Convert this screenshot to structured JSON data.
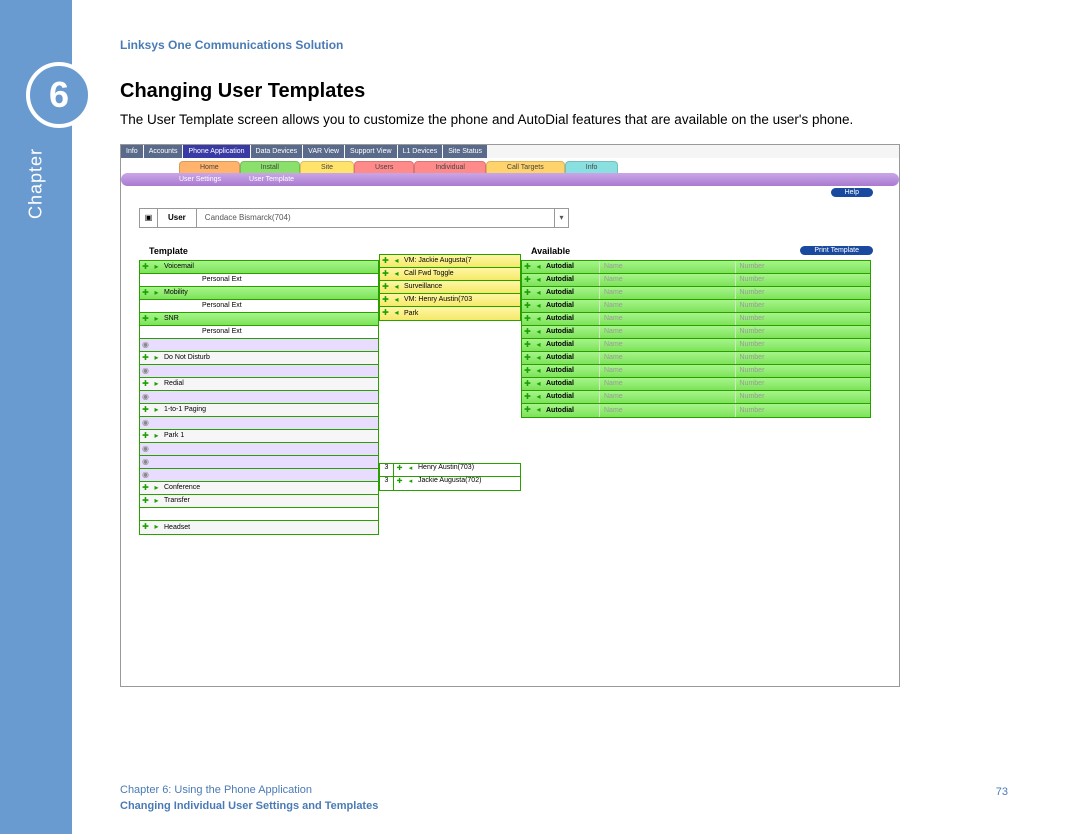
{
  "doc": {
    "productLine": "Linksys One Communications Solution",
    "chapterNumber": "6",
    "chapterWord": "Chapter",
    "sectionTitle": "Changing User Templates",
    "body": "The User Template screen allows you to customize the phone and AutoDial features that are available on the user's phone.",
    "footerLine1": "Chapter 6: Using the Phone Application",
    "footerLine2": "Changing Individual User Settings and Templates",
    "pageNumber": "73"
  },
  "colors": {
    "sidebar": "#6a9bd0",
    "heading": "#4a7bb5",
    "tabHome": "#ffb36b",
    "tabInstall": "#8ae06a",
    "tabSite": "#ffe36b",
    "tabUsers": "#ff8a8a",
    "tabIndividual": "#ff8a8a",
    "tabCallTargets": "#ffd36b",
    "tabInfo": "#8ae0e0",
    "purpleBar": "linear-gradient(#c9a6e8,#a97ad0)",
    "greenRow": "linear-gradient(#a6f58a,#7de35a)"
  },
  "screenshot": {
    "topTabs": [
      "Info",
      "Accounts",
      "Phone Application",
      "Data Devices",
      "VAR View",
      "Support View",
      "L1 Devices",
      "Site Status"
    ],
    "topTabsActiveIndex": 2,
    "navTabs": [
      "Home",
      "Install",
      "Site",
      "Users",
      "Individual",
      "Call Targets",
      "Info"
    ],
    "purpleTabs": [
      "User Settings",
      "User Template"
    ],
    "helpLabel": "Help",
    "printLabel": "Print Template",
    "userLabel": "User",
    "userValue": "Candace Bismarck(704)",
    "templateHeader": "Template",
    "availableHeader": "Available",
    "templateItems": [
      {
        "label": "Voicemail",
        "style": "green",
        "icons": "pa"
      },
      {
        "label": "Personal Ext",
        "style": "plain",
        "icons": "none",
        "indent": true
      },
      {
        "label": "Mobility",
        "style": "green",
        "icons": "pa"
      },
      {
        "label": "Personal Ext",
        "style": "plain",
        "icons": "none",
        "indent": true
      },
      {
        "label": "SNR",
        "style": "green",
        "icons": "pa"
      },
      {
        "label": "Personal Ext",
        "style": "plain",
        "icons": "none",
        "indent": true
      },
      {
        "label": "",
        "style": "lav",
        "icons": "c"
      },
      {
        "label": "Do Not Disturb",
        "style": "gray",
        "icons": "pa"
      },
      {
        "label": "",
        "style": "lav",
        "icons": "c"
      },
      {
        "label": "Redial",
        "style": "gray",
        "icons": "pa"
      },
      {
        "label": "",
        "style": "lav",
        "icons": "c"
      },
      {
        "label": "1-to-1 Paging",
        "style": "gray",
        "icons": "pa"
      },
      {
        "label": "",
        "style": "lav",
        "icons": "c"
      },
      {
        "label": "Park 1",
        "style": "gray",
        "icons": "pa"
      },
      {
        "label": "",
        "style": "lav",
        "icons": "c"
      },
      {
        "label": "",
        "style": "lav",
        "icons": "c"
      },
      {
        "label": "",
        "style": "lav",
        "icons": "c"
      },
      {
        "label": "Conference",
        "style": "gray",
        "icons": "pa"
      },
      {
        "label": "Transfer",
        "style": "gray",
        "icons": "pa"
      },
      {
        "label": "",
        "style": "plain",
        "icons": "none"
      },
      {
        "label": "Headset",
        "style": "gray",
        "icons": "pa"
      }
    ],
    "midItems": [
      {
        "label": "VM: Jackie Augusta(7"
      },
      {
        "label": "Call Fwd Toggle"
      },
      {
        "label": "Surveillance"
      },
      {
        "label": "VM: Henry Austin(703"
      },
      {
        "label": "Park"
      }
    ],
    "midBottom": [
      {
        "n": "3",
        "label": "Henry Austin(703)"
      },
      {
        "n": "3",
        "label": "Jackie Augusta(702)"
      }
    ],
    "availableItems": [
      {
        "label": "Autodial",
        "f1": "Name",
        "f2": "Number"
      },
      {
        "label": "Autodial",
        "f1": "Name",
        "f2": "Number"
      },
      {
        "label": "Autodial",
        "f1": "Name",
        "f2": "Number"
      },
      {
        "label": "Autodial",
        "f1": "Name",
        "f2": "Number"
      },
      {
        "label": "Autodial",
        "f1": "Name",
        "f2": "Number"
      },
      {
        "label": "Autodial",
        "f1": "Name",
        "f2": "Number"
      },
      {
        "label": "Autodial",
        "f1": "Name",
        "f2": "Number"
      },
      {
        "label": "Autodial",
        "f1": "Name",
        "f2": "Number"
      },
      {
        "label": "Autodial",
        "f1": "Name",
        "f2": "Number"
      },
      {
        "label": "Autodial",
        "f1": "Name",
        "f2": "Number"
      },
      {
        "label": "Autodial",
        "f1": "Name",
        "f2": "Number"
      },
      {
        "label": "Autodial",
        "f1": "Name",
        "f2": "Number"
      }
    ]
  }
}
